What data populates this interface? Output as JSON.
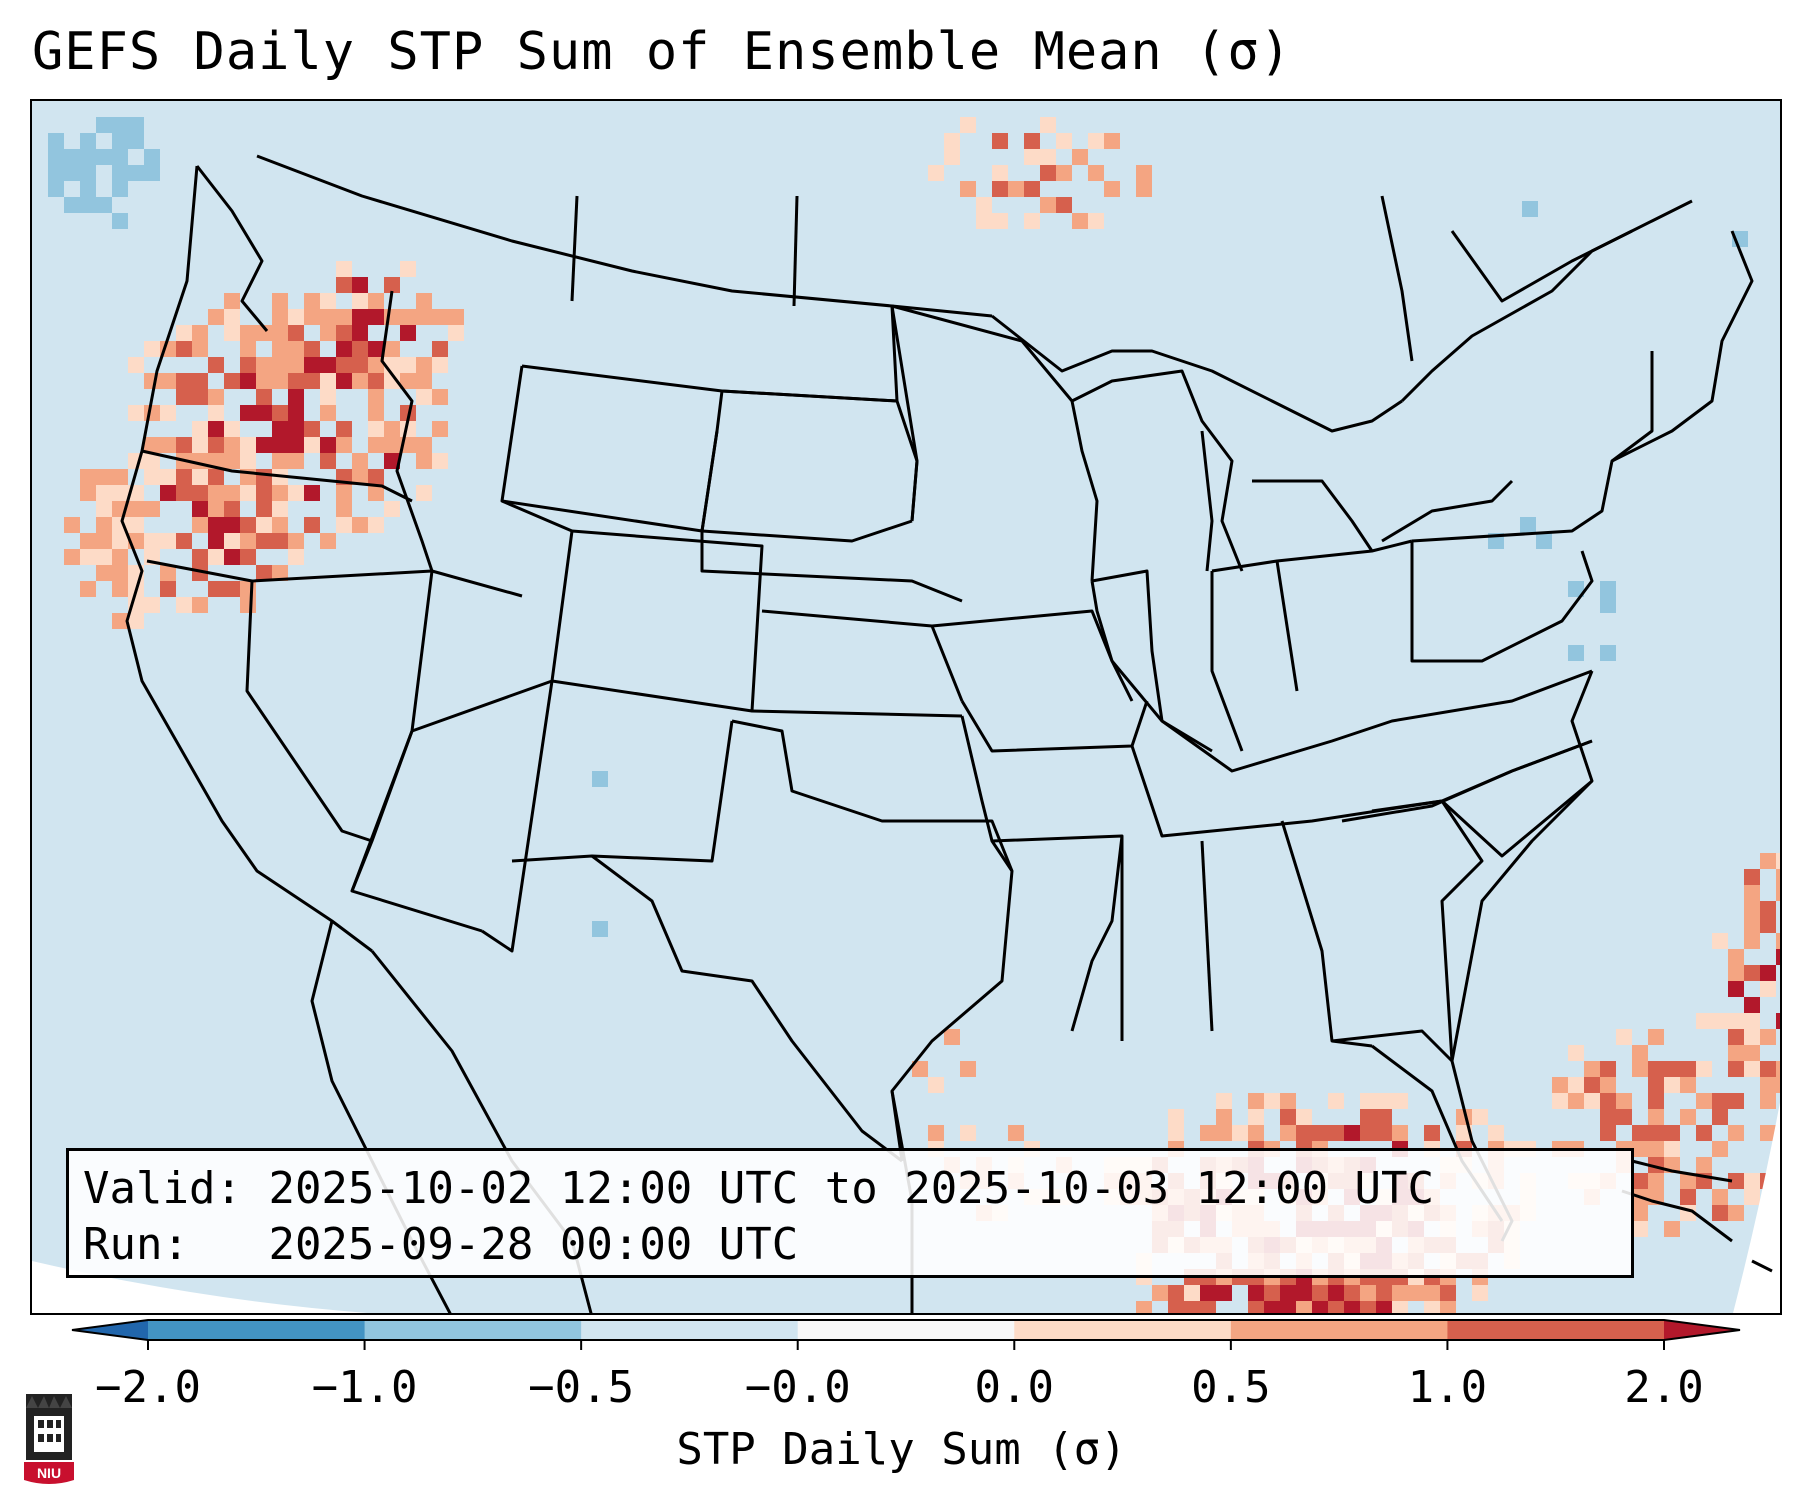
{
  "title": "GEFS Daily STP Sum of Ensemble Mean (σ)",
  "info_box": {
    "valid_label": "Valid:",
    "valid_value": "2025-10-02 12:00 UTC to 2025-10-03 12:00 UTC",
    "run_label": "Run:",
    "run_value": "2025-09-28 00:00 UTC"
  },
  "colorbar": {
    "label": "STP Daily Sum (σ)",
    "ticks": [
      "−2.0",
      "−1.0",
      "−0.5",
      "−0.0",
      "0.0",
      "0.5",
      "1.0",
      "2.0"
    ],
    "bins": [
      {
        "from": -2.0,
        "to": -1.0,
        "color": "#4393c3"
      },
      {
        "from": -1.0,
        "to": -0.5,
        "color": "#92c5de"
      },
      {
        "from": -0.5,
        "to": 0.0,
        "color": "#d1e5f0"
      },
      {
        "from": 0.0,
        "to": 0.0,
        "color": "#f7f7f7"
      },
      {
        "from": 0.0,
        "to": 0.5,
        "color": "#fddbc7"
      },
      {
        "from": 0.5,
        "to": 1.0,
        "color": "#f4a582"
      },
      {
        "from": 1.0,
        "to": 2.0,
        "color": "#d6604d"
      }
    ],
    "under_color": "#2166ac",
    "over_color": "#b2182b"
  },
  "map": {
    "background_value_color": "#d1e5f0",
    "regions": [
      {
        "name": "pacific-northwest",
        "level": "high"
      },
      {
        "name": "northern-california",
        "level": "high"
      },
      {
        "name": "gulf-of-mexico",
        "level": "high"
      },
      {
        "name": "caribbean",
        "level": "moderate"
      },
      {
        "name": "southern-canada",
        "level": "moderate"
      },
      {
        "name": "pacific-coastal",
        "level": "moderate"
      },
      {
        "name": "gulf-of-alaska-corner",
        "level": "low"
      },
      {
        "name": "great-lakes",
        "level": "low"
      },
      {
        "name": "mid-atlantic",
        "level": "low"
      }
    ]
  },
  "logo": {
    "text": "NIU",
    "color": "#c8102e"
  }
}
